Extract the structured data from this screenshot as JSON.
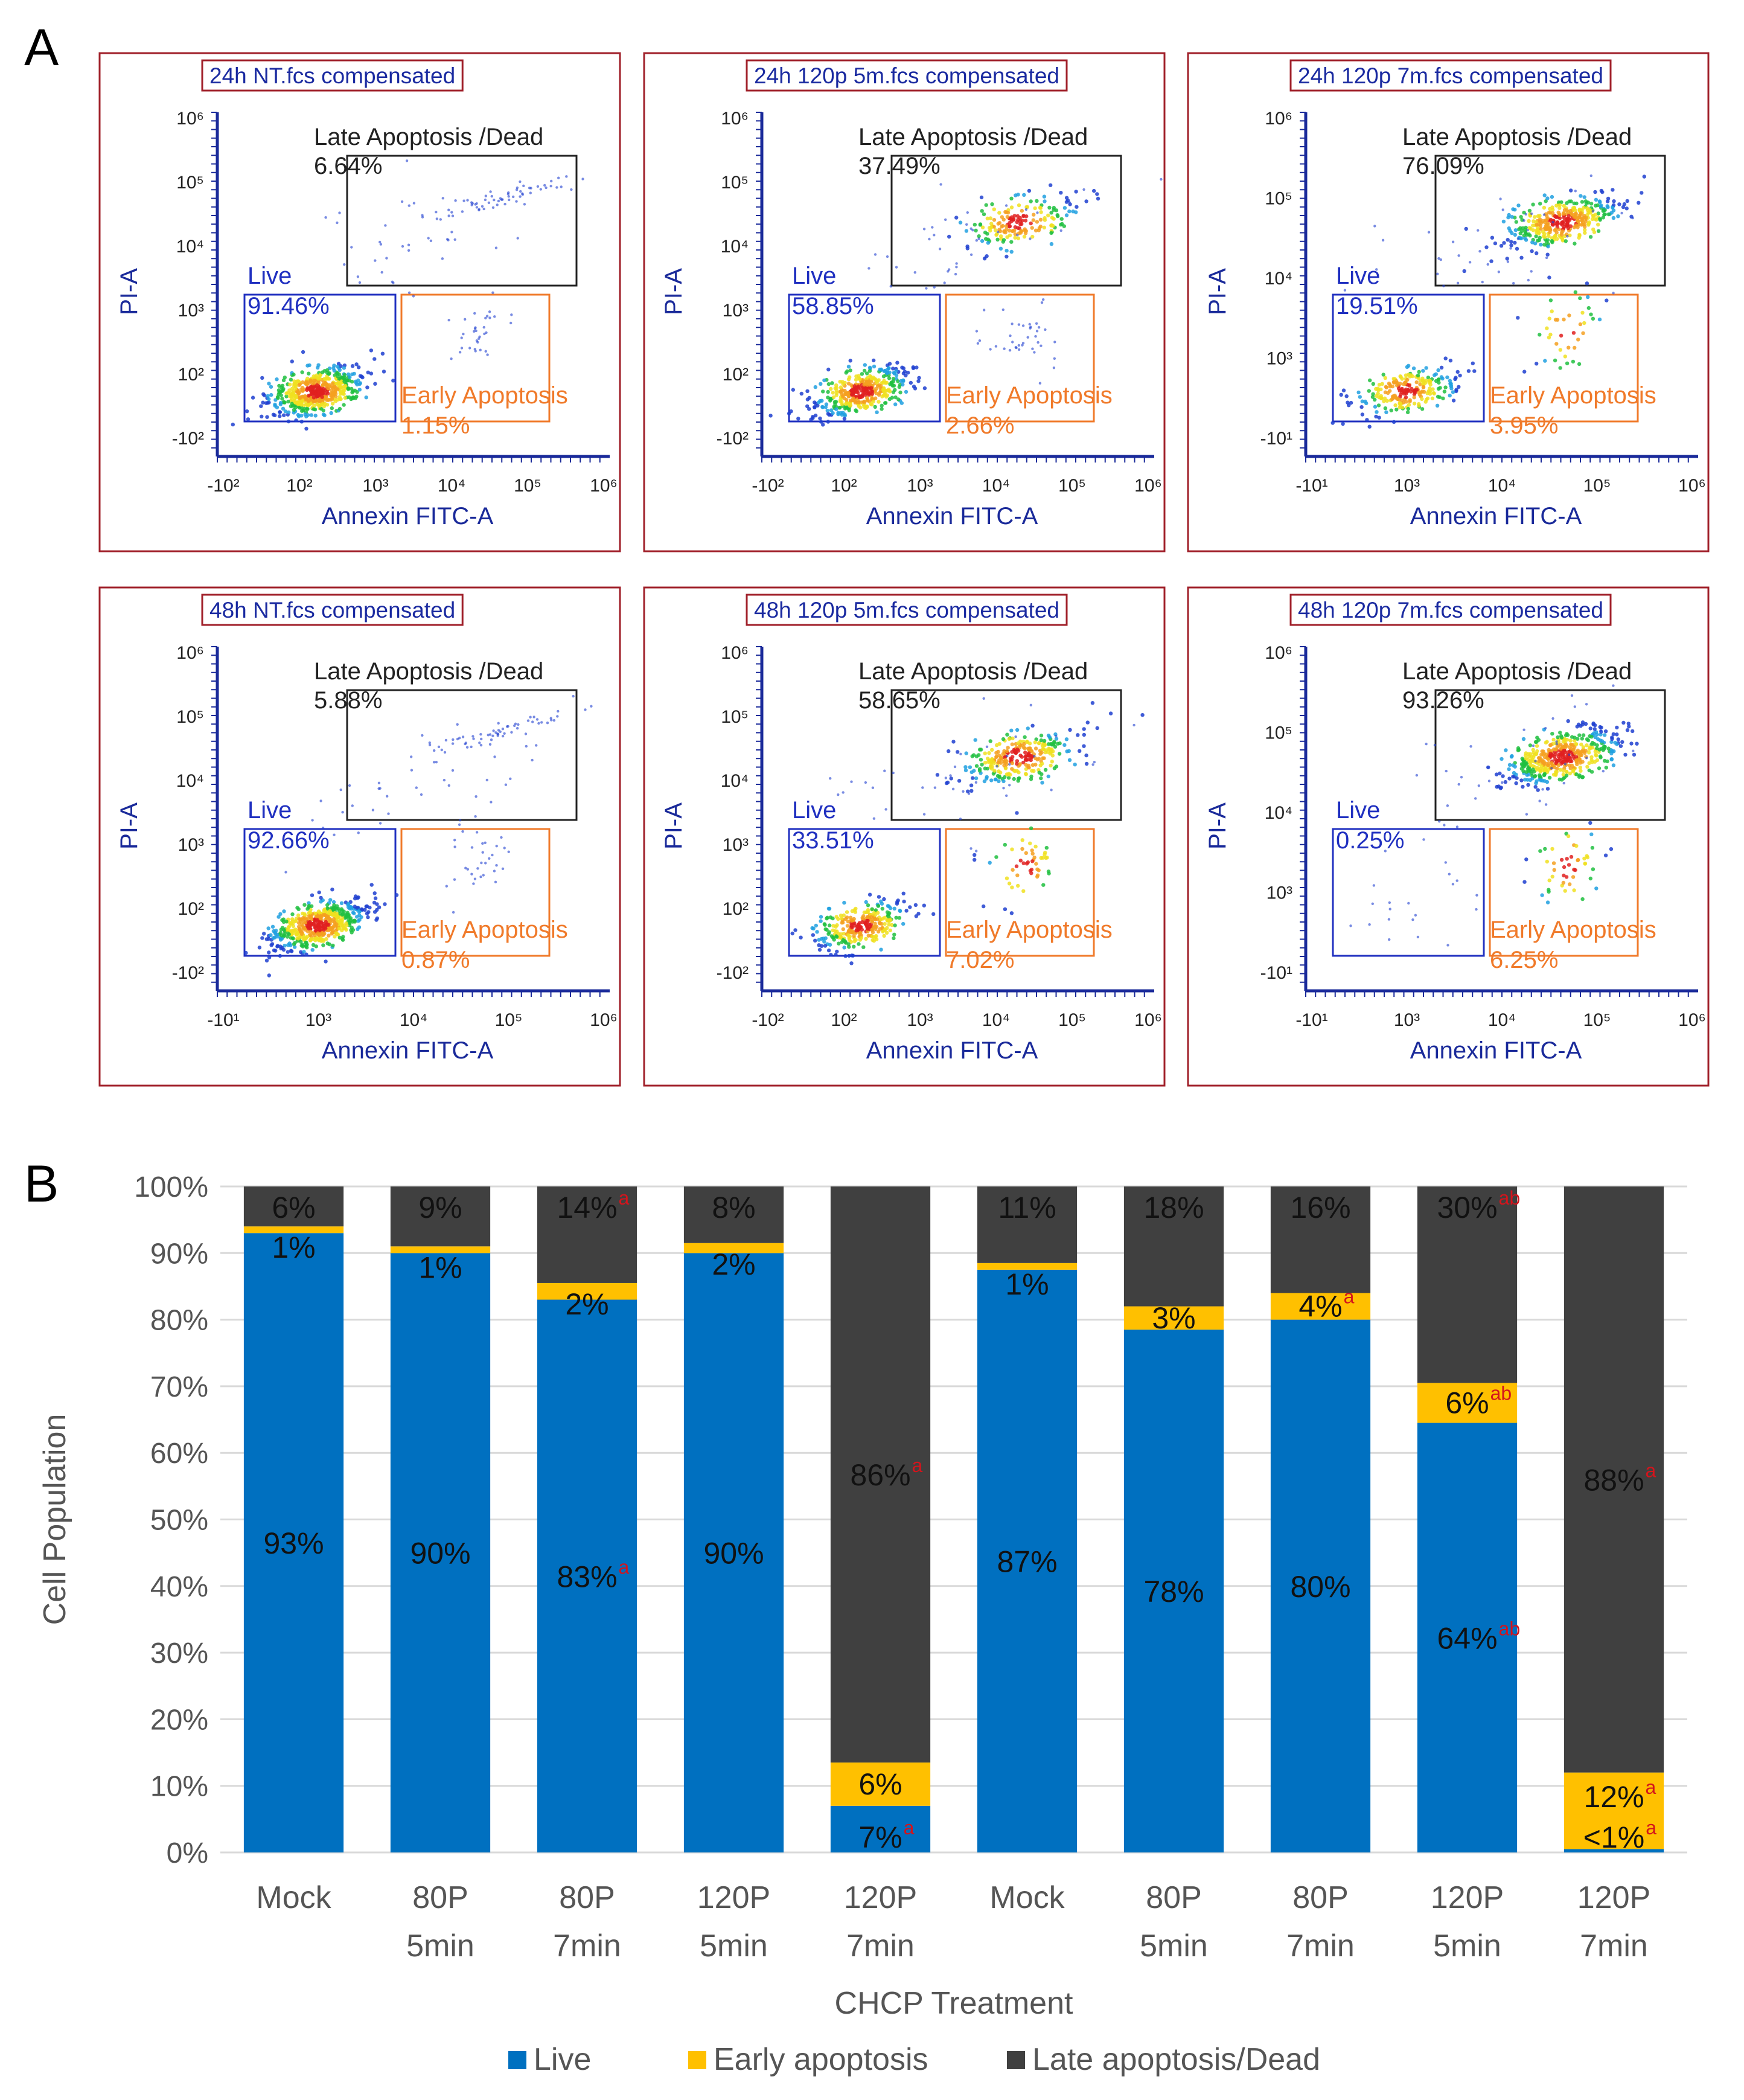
{
  "panel_a": {
    "letter": "A",
    "x_label": "Annexin FITC-A",
    "y_label": "PI-A",
    "gate_labels": {
      "live": "Live",
      "early": "Early Apoptosis",
      "late": "Late Apoptosis /Dead"
    },
    "plots": [
      {
        "title": "24h NT.fcs compensated",
        "live": "91.46%",
        "early": "1.15%",
        "late": "6.64%",
        "x_ticks": [
          "-10²",
          "10²",
          "10³",
          "10⁴",
          "10⁵",
          "10⁶"
        ],
        "y_ticks": [
          "-10²",
          "10²",
          "10³",
          "10⁴",
          "10⁵",
          "10⁶"
        ]
      },
      {
        "title": "24h 120p 5m.fcs compensated",
        "live": "58.85%",
        "early": "2.66%",
        "late": "37.49%",
        "x_ticks": [
          "-10²",
          "10²",
          "10³",
          "10⁴",
          "10⁵",
          "10⁶"
        ],
        "y_ticks": [
          "-10²",
          "10²",
          "10³",
          "10⁴",
          "10⁵",
          "10⁶"
        ]
      },
      {
        "title": "24h 120p 7m.fcs compensated",
        "live": "19.51%",
        "early": "3.95%",
        "late": "76.09%",
        "x_ticks": [
          "-10¹",
          "10³",
          "10⁴",
          "10⁵",
          "10⁶"
        ],
        "y_ticks": [
          "-10¹",
          "10³",
          "10⁴",
          "10⁵",
          "10⁶"
        ]
      },
      {
        "title": "48h NT.fcs compensated",
        "live": "92.66%",
        "early": "0.87%",
        "late": "5.88%",
        "x_ticks": [
          "-10¹",
          "10³",
          "10⁴",
          "10⁵",
          "10⁶"
        ],
        "y_ticks": [
          "-10²",
          "10²",
          "10³",
          "10⁴",
          "10⁵",
          "10⁶"
        ]
      },
      {
        "title": "48h 120p 5m.fcs compensated",
        "live": "33.51%",
        "early": "7.02%",
        "late": "58.65%",
        "x_ticks": [
          "-10²",
          "10²",
          "10³",
          "10⁴",
          "10⁵",
          "10⁶"
        ],
        "y_ticks": [
          "-10²",
          "10²",
          "10³",
          "10⁴",
          "10⁵",
          "10⁶"
        ]
      },
      {
        "title": "48h 120p 7m.fcs compensated",
        "live": "0.25%",
        "early": "6.25%",
        "late": "93.26%",
        "x_ticks": [
          "-10¹",
          "10³",
          "10⁴",
          "10⁵",
          "10⁶"
        ],
        "y_ticks": [
          "-10¹",
          "10³",
          "10⁴",
          "10⁵",
          "10⁶"
        ]
      }
    ]
  },
  "chart_data": {
    "type": "bar",
    "stacked": true,
    "panel_letter": "B",
    "title": "",
    "xlabel": "CHCP Treatment",
    "ylabel": "Cell Population",
    "ylim": [
      0,
      100
    ],
    "y_ticks": [
      "0%",
      "10%",
      "20%",
      "30%",
      "40%",
      "50%",
      "60%",
      "70%",
      "80%",
      "90%",
      "100%"
    ],
    "categories": [
      [
        "Mock"
      ],
      [
        "80P",
        "5min"
      ],
      [
        "80P",
        "7min"
      ],
      [
        "120P",
        "5min"
      ],
      [
        "120P",
        "7min"
      ],
      [
        "Mock"
      ],
      [
        "80P",
        "5min"
      ],
      [
        "80P",
        "7min"
      ],
      [
        "120P",
        "5min"
      ],
      [
        "120P",
        "7min"
      ]
    ],
    "colors": {
      "live": "#0070c0",
      "early": "#ffc000",
      "late": "#404040",
      "superscript": "#d4141c"
    },
    "series": [
      {
        "name": "Live",
        "key": "live",
        "values": [
          93,
          90,
          83,
          90,
          7,
          87.5,
          78.5,
          80,
          64.5,
          0.5
        ],
        "labels": [
          "93%",
          "90%",
          "83%",
          "90%",
          "7%",
          "87%",
          "78%",
          "80%",
          "64%",
          "<1%"
        ],
        "sups": [
          "",
          "",
          "a",
          "",
          "a",
          "",
          "",
          "",
          "ab",
          "a"
        ]
      },
      {
        "name": "Early apoptosis",
        "key": "early",
        "values": [
          1,
          1,
          2.5,
          1.5,
          6.5,
          1,
          3.5,
          4,
          6,
          11.5
        ],
        "labels": [
          "1%",
          "1%",
          "2%",
          "2%",
          "6%",
          "1%",
          "3%",
          "4%",
          "6%",
          "12%"
        ],
        "sups": [
          "",
          "",
          "",
          "",
          "",
          "",
          "",
          "a",
          "ab",
          "a"
        ]
      },
      {
        "name": "Late apoptosis/Dead",
        "key": "late",
        "values": [
          6,
          9,
          14.5,
          8.5,
          86.5,
          11.5,
          18,
          16,
          29.5,
          88
        ],
        "labels": [
          "6%",
          "9%",
          "14%",
          "8%",
          "86%",
          "11%",
          "18%",
          "16%",
          "30%",
          "88%"
        ],
        "sups": [
          "",
          "",
          "a",
          "",
          "a",
          "",
          "",
          "",
          "ab",
          "a"
        ]
      }
    ],
    "legend": [
      "Live",
      "Early apoptosis",
      "Late apoptosis/Dead"
    ]
  }
}
